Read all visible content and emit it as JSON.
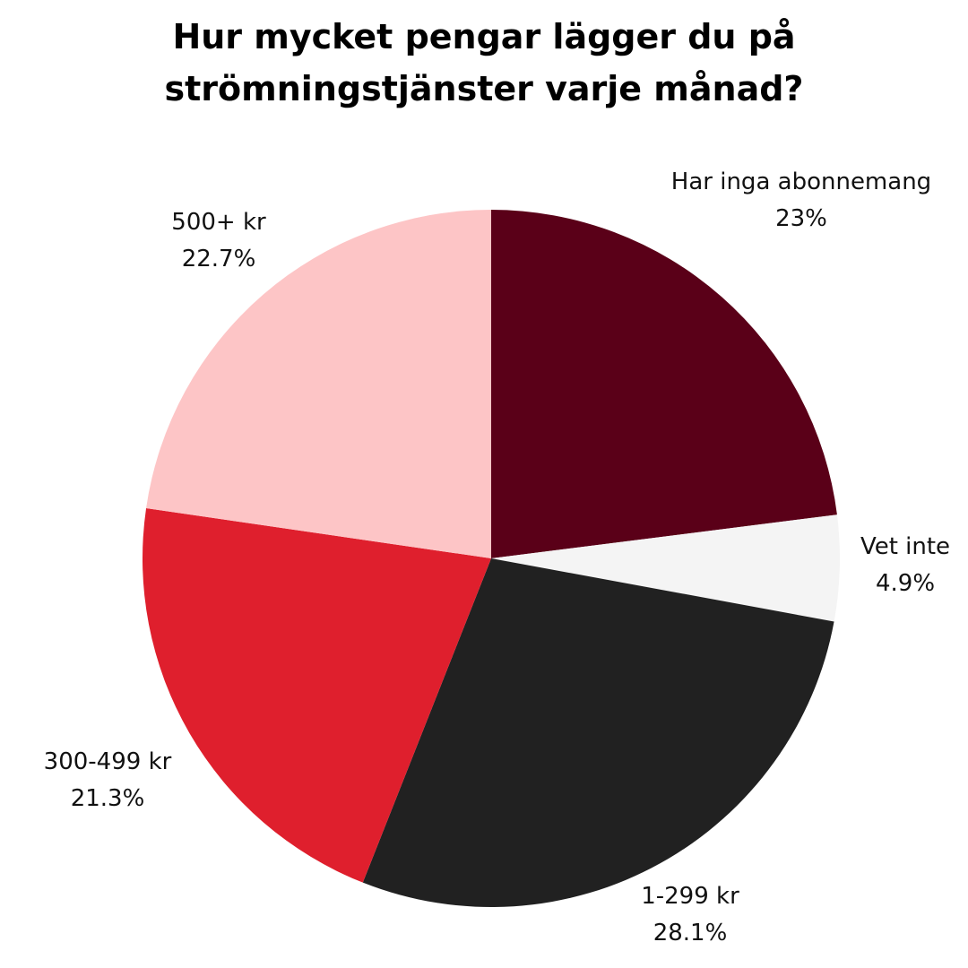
{
  "chart_data": {
    "type": "pie",
    "title_lines": [
      "Hur mycket pengar lägger du på",
      "strömningstjänster varje månad?"
    ],
    "slices": [
      {
        "label": "Har inga abonnemang",
        "value": 23,
        "value_label": "23%",
        "color": "#5a0018"
      },
      {
        "label": "Vet inte",
        "value": 4.9,
        "value_label": "4.9%",
        "color": "#f4f4f4"
      },
      {
        "label": "1-299 kr",
        "value": 28.1,
        "value_label": "28.1%",
        "color": "#212121"
      },
      {
        "label": "300-499 kr",
        "value": 21.3,
        "value_label": "21.3%",
        "color": "#df1f2d"
      },
      {
        "label": "500+ kr",
        "value": 22.7,
        "value_label": "22.7%",
        "color": "#fdc5c6"
      }
    ]
  }
}
